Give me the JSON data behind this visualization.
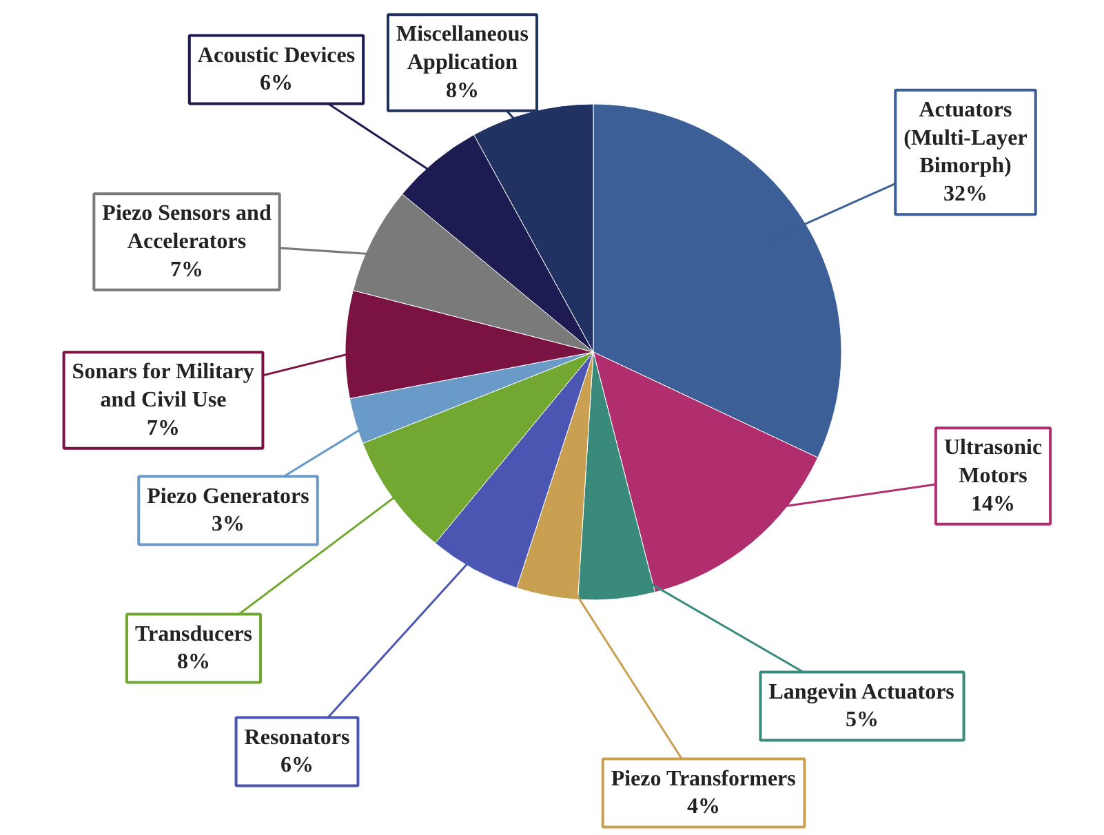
{
  "chart_data": {
    "type": "pie",
    "categories": [
      "Actuators\n(Multi-Layer\nBimorph)",
      "Ultrasonic\nMotors",
      "Langevin Actuators",
      "Piezo Transformers",
      "Resonators",
      "Transducers",
      "Piezo Generators",
      "Sonars for Military\nand Civil Use",
      "Piezo Sensors and\nAccelerators",
      "Acoustic Devices",
      "Miscellaneous\nApplication"
    ],
    "values": [
      32,
      14,
      5,
      4,
      6,
      8,
      3,
      7,
      7,
      6,
      8
    ],
    "value_labels": [
      "32%",
      "14%",
      "5%",
      "4%",
      "6%",
      "8%",
      "3%",
      "7%",
      "7%",
      "6%",
      "8%"
    ],
    "colors": [
      "#3b5f96",
      "#b02e6e",
      "#3a8a7c",
      "#c9a052",
      "#4a56b2",
      "#72a832",
      "#6a9ac8",
      "#7a1242",
      "#7a7a7a",
      "#1c1c52",
      "#1f3262"
    ]
  }
}
